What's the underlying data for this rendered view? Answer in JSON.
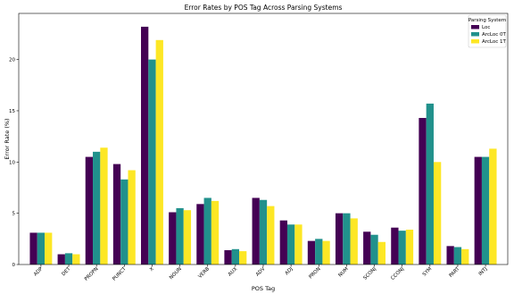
{
  "chart_data": {
    "type": "bar",
    "title": "Error Rates by POS Tag Across Parsing Systems",
    "xlabel": "POS Tag",
    "ylabel": "Error Rate (%)",
    "ylim": [
      0,
      24.5
    ],
    "yticks": [
      0,
      5,
      10,
      15,
      20
    ],
    "grid": false,
    "legend": {
      "title": "Parsing System",
      "position": "top-right"
    },
    "categories": [
      "ADP",
      "DET",
      "PROPN",
      "PUNCT",
      "X",
      "NOUN",
      "VERB",
      "AUX",
      "ADV",
      "ADJ",
      "PRON",
      "NUM",
      "SCONJ",
      "CCONJ",
      "SYM",
      "PART",
      "INTJ"
    ],
    "series": [
      {
        "name": "Loc",
        "color": "#440154",
        "values": [
          3.1,
          1.0,
          10.5,
          9.8,
          23.2,
          5.1,
          5.9,
          1.4,
          6.5,
          4.3,
          2.3,
          5.0,
          3.2,
          3.6,
          14.3,
          1.8,
          10.5
        ]
      },
      {
        "name": "ArcLoc 0T",
        "color": "#21918c",
        "values": [
          3.1,
          1.1,
          11.0,
          8.3,
          20.0,
          5.5,
          6.5,
          1.5,
          6.3,
          3.9,
          2.5,
          5.0,
          2.9,
          3.3,
          15.7,
          1.7,
          10.5
        ]
      },
      {
        "name": "ArcLoc 1T",
        "color": "#fde725",
        "values": [
          3.1,
          1.0,
          11.4,
          9.2,
          21.9,
          5.3,
          6.2,
          1.3,
          5.7,
          3.9,
          2.3,
          4.5,
          2.2,
          3.4,
          10.0,
          1.5,
          11.3
        ]
      }
    ]
  }
}
